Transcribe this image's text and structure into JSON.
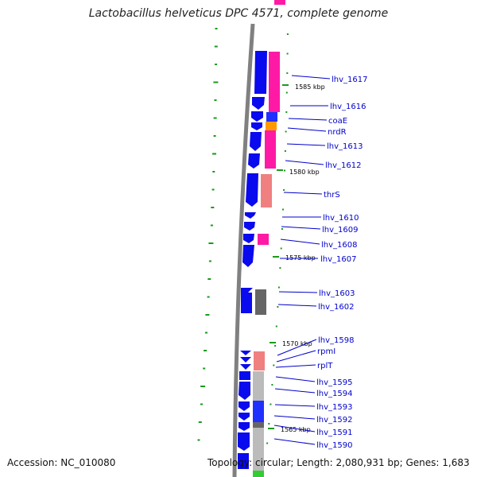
{
  "title": "Lactobacillus helveticus DPC 4571, complete genome",
  "footer": {
    "accession": "Accession: NC_010080",
    "topology": "Topology: circular; Length: 2,080,931 bp; Genes: 1,683"
  },
  "kbp_markers": [
    "1585 kbp",
    "1580 kbp",
    "1575 kbp",
    "1570 kbp",
    "1565 kbp"
  ],
  "genes": [
    {
      "label": "lhv_1617",
      "color": "#ff1aa6"
    },
    {
      "label": "lhv_1616",
      "color": "#ff1aa6"
    },
    {
      "label": "coaE",
      "color": "#2030ff"
    },
    {
      "label": "nrdR",
      "color": "#ff9900"
    },
    {
      "label": "lhv_1613",
      "color": "#ff1aa6"
    },
    {
      "label": "lhv_1612",
      "color": "#ff1aa6"
    },
    {
      "label": "thrS",
      "color": "#f08080"
    },
    {
      "label": "lhv_1610",
      "color": ""
    },
    {
      "label": "lhv_1609",
      "color": ""
    },
    {
      "label": "lhv_1608",
      "color": "#ff1aa6"
    },
    {
      "label": "lhv_1607",
      "color": ""
    },
    {
      "label": "lhv_1603",
      "color": "#666666"
    },
    {
      "label": "lhv_1602",
      "color": "#666666"
    },
    {
      "label": "lhv_1598",
      "color": ""
    },
    {
      "label": "rpmI",
      "color": "#f08080"
    },
    {
      "label": "rplT",
      "color": "#f08080"
    },
    {
      "label": "lhv_1595",
      "color": "#bbbbbb"
    },
    {
      "label": "lhv_1594",
      "color": "#bbbbbb"
    },
    {
      "label": "lhv_1593",
      "color": "#2030ff"
    },
    {
      "label": "lhv_1592",
      "color": "#bbbbbb"
    },
    {
      "label": "lhv_1591",
      "color": "#666666"
    },
    {
      "label": "lhv_1590",
      "color": "#bbbbbb"
    }
  ],
  "colors": {
    "gene_arrow": "#0a0aee",
    "backbone": "#808080",
    "gc_tick": "#1a9a1a",
    "label": "#0000cc",
    "green_band": "#33cc33"
  }
}
